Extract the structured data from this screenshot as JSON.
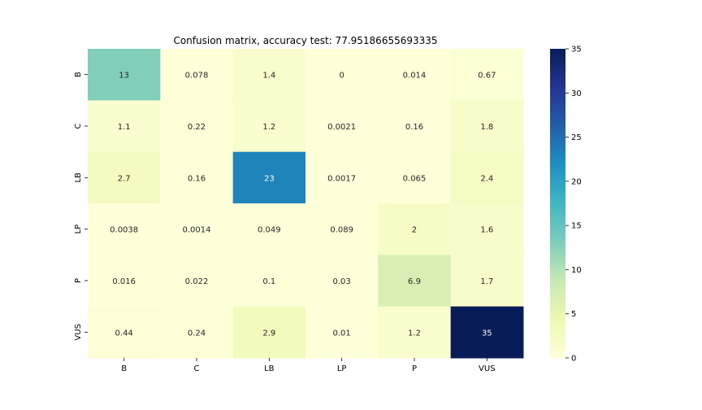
{
  "chart_data": {
    "type": "heatmap",
    "title": "Confusion matrix, accuracy test: 77.95186655693335",
    "xlabel": "",
    "ylabel": "",
    "x_categories": [
      "B",
      "C",
      "LB",
      "LP",
      "P",
      "VUS"
    ],
    "y_categories": [
      "B",
      "C",
      "LB",
      "LP",
      "P",
      "VUS"
    ],
    "values": [
      [
        13,
        0.078,
        1.4,
        0,
        0.014,
        0.67
      ],
      [
        1.1,
        0.22,
        1.2,
        0.0021,
        0.16,
        1.8
      ],
      [
        2.7,
        0.16,
        23,
        0.0017,
        0.065,
        2.4
      ],
      [
        0.0038,
        0.0014,
        0.049,
        0.089,
        2,
        1.6
      ],
      [
        0.016,
        0.022,
        0.1,
        0.03,
        6.9,
        1.7
      ],
      [
        0.44,
        0.24,
        2.9,
        0.01,
        1.2,
        35
      ]
    ],
    "cell_labels": [
      [
        "13",
        "0.078",
        "1.4",
        "0",
        "0.014",
        "0.67"
      ],
      [
        "1.1",
        "0.22",
        "1.2",
        "0.0021",
        "0.16",
        "1.8"
      ],
      [
        "2.7",
        "0.16",
        "23",
        "0.0017",
        "0.065",
        "2.4"
      ],
      [
        "0.0038",
        "0.0014",
        "0.049",
        "0.089",
        "2",
        "1.6"
      ],
      [
        "0.016",
        "0.022",
        "0.1",
        "0.03",
        "6.9",
        "1.7"
      ],
      [
        "0.44",
        "0.24",
        "2.9",
        "0.01",
        "1.2",
        "35"
      ]
    ],
    "colormap": "YlGnBu",
    "colorbar": {
      "range": [
        0,
        35
      ],
      "ticks": [
        0,
        5,
        10,
        15,
        20,
        25,
        30,
        35
      ],
      "tick_labels": [
        "0",
        "5",
        "10",
        "15",
        "20",
        "25",
        "30",
        "35"
      ]
    },
    "grid": false
  }
}
